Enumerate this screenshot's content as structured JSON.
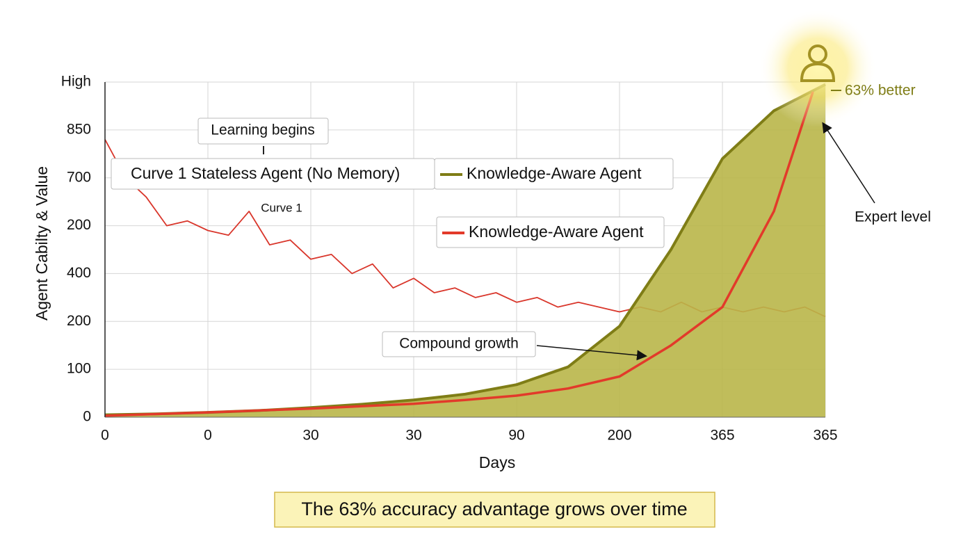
{
  "chart_data": {
    "type": "line",
    "xlabel": "Days",
    "ylabel": "Agent Cabilty & Value",
    "xlim": [
      0,
      7
    ],
    "ylim": [
      0,
      7
    ],
    "xticks": [
      0,
      {
        "value": 1,
        "label": "0"
      },
      {
        "value": 2,
        "label": "30"
      },
      {
        "value": 3,
        "label": "30"
      },
      {
        "value": 4,
        "label": "90"
      },
      {
        "value": 5,
        "label": "200"
      },
      {
        "value": 6,
        "label": "365"
      },
      {
        "value": 7,
        "label": "365"
      }
    ],
    "yticks": [
      0,
      {
        "value": 1,
        "label": "100"
      },
      {
        "value": 2,
        "label": "200"
      },
      {
        "value": 3,
        "label": "400"
      },
      {
        "value": 4,
        "label": "200"
      },
      {
        "value": 5,
        "label": "700"
      },
      {
        "value": 6,
        "label": "850"
      },
      {
        "value": 7,
        "label": "High"
      }
    ],
    "grid": true,
    "series": [
      {
        "name": "Curve 1 Stateless Agent (No Memory)",
        "color": "#d9362b",
        "fill": false,
        "x": [
          0,
          0.2,
          0.4,
          0.6,
          0.8,
          1.0,
          1.2,
          1.4,
          1.6,
          1.8,
          2.0,
          2.2,
          2.4,
          2.6,
          2.8,
          3.0,
          3.2,
          3.4,
          3.6,
          3.8,
          4.0,
          4.2,
          4.4,
          4.6,
          4.8,
          5.0,
          5.2,
          5.4,
          5.6,
          5.8,
          6.0,
          6.2,
          6.4,
          6.6,
          6.8,
          7.0
        ],
        "values": [
          5.8,
          5.0,
          4.6,
          4.0,
          4.1,
          3.9,
          3.8,
          4.3,
          3.6,
          3.7,
          3.3,
          3.4,
          3.0,
          3.2,
          2.7,
          2.9,
          2.6,
          2.7,
          2.5,
          2.6,
          2.4,
          2.5,
          2.3,
          2.4,
          2.3,
          2.2,
          2.3,
          2.2,
          2.4,
          2.2,
          2.3,
          2.2,
          2.3,
          2.2,
          2.3,
          2.1
        ]
      },
      {
        "name": "Knowledge-Aware Agent",
        "color": "#7f7d16",
        "fill": true,
        "x": [
          0,
          0.5,
          1,
          1.5,
          2,
          2.5,
          3,
          3.5,
          4,
          4.5,
          5,
          5.5,
          6,
          6.5,
          7
        ],
        "values": [
          0.05,
          0.07,
          0.1,
          0.14,
          0.2,
          0.27,
          0.36,
          0.48,
          0.68,
          1.05,
          1.9,
          3.5,
          5.4,
          6.4,
          6.95
        ]
      },
      {
        "name": "Knowledge-Aware Agent",
        "color": "#e23a2a",
        "fill": false,
        "x": [
          0,
          1,
          2,
          3,
          3.5,
          4,
          4.5,
          5,
          5.5,
          6,
          6.5,
          6.88
        ],
        "values": [
          0.03,
          0.1,
          0.18,
          0.28,
          0.36,
          0.45,
          0.6,
          0.85,
          1.5,
          2.3,
          4.3,
          6.8
        ]
      }
    ],
    "annotations": [
      "Learning begins",
      "Curve 1",
      "Compound growth",
      "Expert level",
      "63% better"
    ],
    "caption": "The 63% accuracy advantage grows over time"
  }
}
